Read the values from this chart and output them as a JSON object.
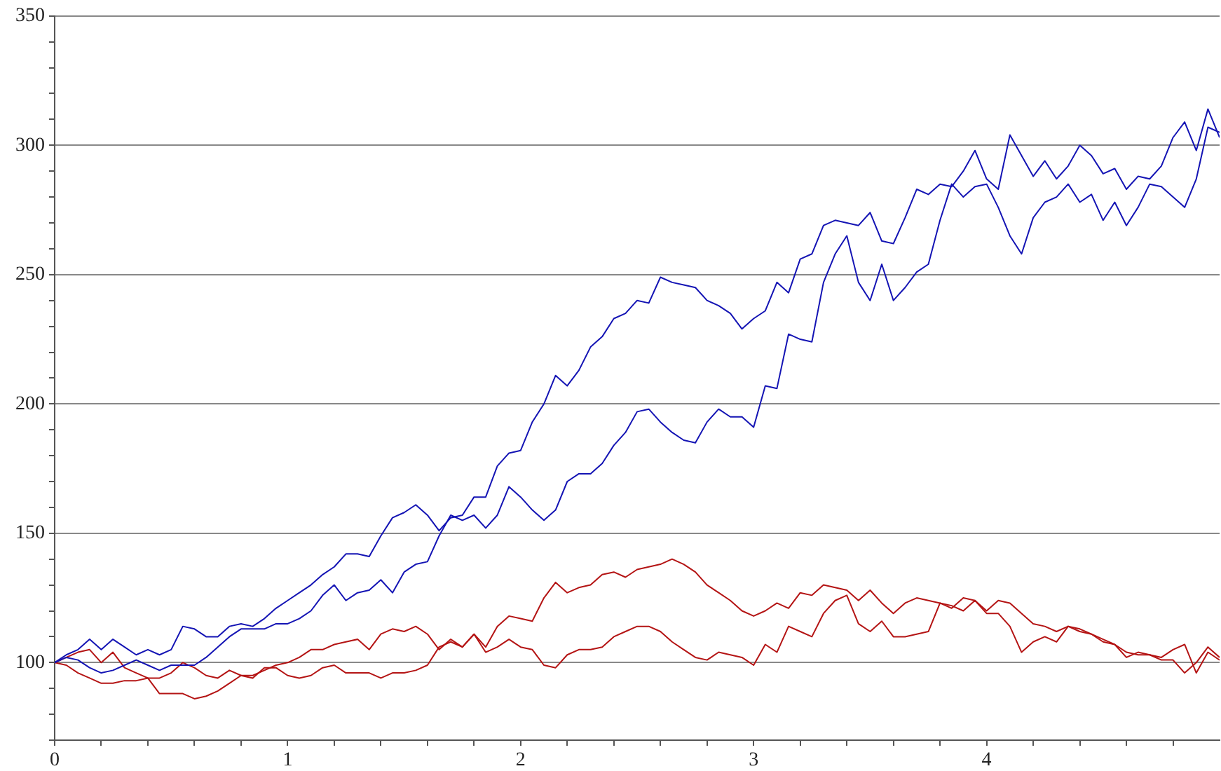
{
  "chart_data": {
    "type": "line",
    "x": [
      0,
      0.05,
      0.1,
      0.15,
      0.2,
      0.25,
      0.3,
      0.35,
      0.4,
      0.45,
      0.5,
      0.55,
      0.6,
      0.65,
      0.7,
      0.75,
      0.8,
      0.85,
      0.9,
      0.95,
      1,
      1.05,
      1.1,
      1.15,
      1.2,
      1.25,
      1.3,
      1.35,
      1.4,
      1.45,
      1.5,
      1.55,
      1.6,
      1.65,
      1.7,
      1.75,
      1.8,
      1.85,
      1.9,
      1.95,
      2,
      2.05,
      2.1,
      2.15,
      2.2,
      2.25,
      2.3,
      2.35,
      2.4,
      2.45,
      2.5,
      2.55,
      2.6,
      2.65,
      2.7,
      2.75,
      2.8,
      2.85,
      2.9,
      2.95,
      3,
      3.05,
      3.1,
      3.15,
      3.2,
      3.25,
      3.3,
      3.35,
      3.4,
      3.45,
      3.5,
      3.55,
      3.6,
      3.65,
      3.7,
      3.75,
      3.8,
      3.85,
      3.9,
      3.95,
      4,
      4.05,
      4.1,
      4.15,
      4.2,
      4.25,
      4.3,
      4.35,
      4.4,
      4.45,
      4.5,
      4.55,
      4.6,
      4.65,
      4.7,
      4.75,
      4.8,
      4.85,
      4.9,
      4.95,
      5
    ],
    "series": [
      {
        "color": "#1414b4",
        "values": [
          100,
          103,
          105,
          109,
          105,
          109,
          106,
          103,
          105,
          103,
          105,
          114,
          113,
          110,
          110,
          114,
          115,
          114,
          117,
          121,
          124,
          127,
          130,
          134,
          137,
          142,
          142,
          141,
          149,
          156,
          158,
          161,
          157,
          151,
          156,
          157,
          164,
          164,
          176,
          181,
          182,
          193,
          200,
          211,
          207,
          213,
          222,
          226,
          233,
          235,
          240,
          239,
          249,
          247,
          246,
          245,
          240,
          238,
          235,
          229,
          233,
          236,
          247,
          243,
          256,
          258,
          269,
          271,
          270,
          269,
          274,
          263,
          262,
          272,
          283,
          281,
          285,
          284,
          290,
          298,
          287,
          283,
          304,
          296,
          288,
          294,
          287,
          292,
          300,
          296,
          289,
          291,
          283,
          288,
          287,
          292,
          303,
          309,
          298,
          314,
          303
        ]
      },
      {
        "color": "#1414b4",
        "values": [
          100,
          102,
          101,
          98,
          96,
          97,
          99,
          101,
          99,
          97,
          99,
          99,
          99,
          102,
          106,
          110,
          113,
          113,
          113,
          115,
          115,
          117,
          120,
          126,
          130,
          124,
          127,
          128,
          132,
          127,
          135,
          138,
          139,
          149,
          157,
          155,
          157,
          152,
          157,
          168,
          164,
          159,
          155,
          159,
          170,
          173,
          173,
          177,
          184,
          189,
          197,
          198,
          193,
          189,
          186,
          185,
          193,
          198,
          195,
          195,
          191,
          207,
          206,
          227,
          225,
          224,
          247,
          258,
          265,
          247,
          240,
          254,
          240,
          245,
          251,
          254,
          271,
          285,
          280,
          284,
          285,
          276,
          265,
          258,
          272,
          278,
          280,
          285,
          278,
          281,
          271,
          278,
          269,
          276,
          285,
          284,
          280,
          276,
          287,
          307,
          305
        ]
      },
      {
        "color": "#b41414",
        "values": [
          100,
          102,
          104,
          105,
          100,
          104,
          98,
          96,
          94,
          94,
          96,
          100,
          98,
          95,
          94,
          97,
          95,
          95,
          97,
          99,
          100,
          102,
          105,
          105,
          107,
          108,
          109,
          105,
          111,
          113,
          112,
          114,
          111,
          105,
          109,
          106,
          111,
          106,
          114,
          118,
          117,
          116,
          125,
          131,
          127,
          129,
          130,
          134,
          135,
          133,
          136,
          137,
          138,
          140,
          138,
          135,
          130,
          127,
          124,
          120,
          118,
          120,
          123,
          121,
          127,
          126,
          130,
          129,
          128,
          124,
          128,
          123,
          119,
          123,
          125,
          124,
          123,
          122,
          120,
          124,
          119,
          119,
          114,
          104,
          108,
          110,
          108,
          114,
          112,
          111,
          108,
          107,
          104,
          103,
          103,
          101,
          101,
          96,
          100,
          106,
          102
        ]
      },
      {
        "color": "#b41414",
        "values": [
          100,
          99,
          96,
          94,
          92,
          92,
          93,
          93,
          94,
          88,
          88,
          88,
          86,
          87,
          89,
          92,
          95,
          94,
          98,
          98,
          95,
          94,
          95,
          98,
          99,
          96,
          96,
          96,
          94,
          96,
          96,
          97,
          99,
          106,
          108,
          106,
          111,
          104,
          106,
          109,
          106,
          105,
          99,
          98,
          103,
          105,
          105,
          106,
          110,
          112,
          114,
          114,
          112,
          108,
          105,
          102,
          101,
          104,
          103,
          102,
          99,
          107,
          104,
          114,
          112,
          110,
          119,
          124,
          126,
          115,
          112,
          116,
          110,
          110,
          111,
          112,
          123,
          121,
          125,
          124,
          120,
          124,
          123,
          119,
          115,
          114,
          112,
          114,
          113,
          111,
          109,
          107,
          102,
          104,
          103,
          102,
          105,
          107,
          96,
          104,
          101
        ]
      }
    ],
    "xlim": [
      0,
      5
    ],
    "xticks": [
      0,
      {
        "value": 0.2,
        "label": null
      },
      {
        "value": 0.4,
        "label": null
      },
      {
        "value": 0.6,
        "label": null
      },
      {
        "value": 0.8,
        "label": null
      },
      1,
      {
        "value": 1.2,
        "label": null
      },
      {
        "value": 1.4,
        "label": null
      },
      {
        "value": 1.6,
        "label": null
      },
      {
        "value": 1.8,
        "label": null
      },
      2,
      {
        "value": 2.2,
        "label": null
      },
      {
        "value": 2.4,
        "label": null
      },
      {
        "value": 2.6,
        "label": null
      },
      {
        "value": 2.8,
        "label": null
      },
      3,
      {
        "value": 3.2,
        "label": null
      },
      {
        "value": 3.4,
        "label": null
      },
      {
        "value": 3.6,
        "label": null
      },
      {
        "value": 3.8,
        "label": null
      },
      4,
      {
        "value": 4.2,
        "label": null
      },
      {
        "value": 4.4,
        "label": null
      },
      {
        "value": 4.6,
        "label": null
      },
      {
        "value": 4.8,
        "label": null
      }
    ],
    "ylim": [
      70,
      350
    ],
    "yticks": [
      {
        "value": 70,
        "label": null
      },
      {
        "value": 80,
        "label": null
      },
      {
        "value": 90,
        "label": null
      },
      100,
      {
        "value": 110,
        "label": null
      },
      {
        "value": 120,
        "label": null
      },
      {
        "value": 130,
        "label": null
      },
      {
        "value": 140,
        "label": null
      },
      150,
      {
        "value": 160,
        "label": null
      },
      {
        "value": 170,
        "label": null
      },
      {
        "value": 180,
        "label": null
      },
      {
        "value": 190,
        "label": null
      },
      200,
      {
        "value": 210,
        "label": null
      },
      {
        "value": 220,
        "label": null
      },
      {
        "value": 230,
        "label": null
      },
      {
        "value": 240,
        "label": null
      },
      250,
      {
        "value": 260,
        "label": null
      },
      {
        "value": 270,
        "label": null
      },
      {
        "value": 280,
        "label": null
      },
      {
        "value": 290,
        "label": null
      },
      300,
      {
        "value": 310,
        "label": null
      },
      {
        "value": 320,
        "label": null
      },
      {
        "value": 330,
        "label": null
      },
      {
        "value": 340,
        "label": null
      },
      350
    ],
    "grid": "y",
    "legend": false,
    "marker": "none",
    "line_style": "solid"
  }
}
